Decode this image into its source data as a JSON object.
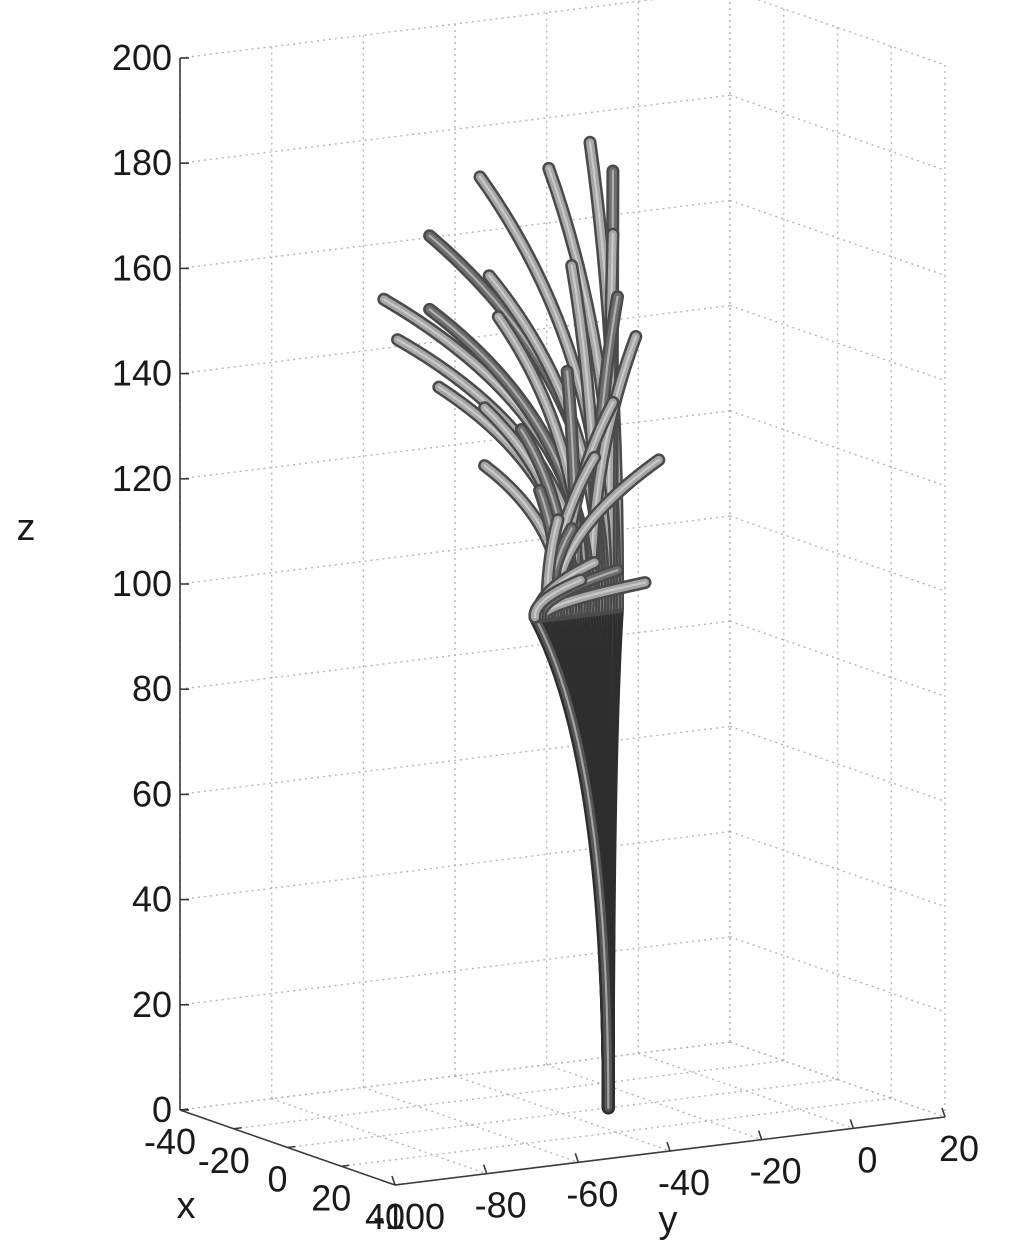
{
  "chart_data": {
    "type": "line",
    "subtype": "3d-tube-trajectories",
    "xlabel": "x",
    "ylabel": "y",
    "zlabel": "z",
    "xlim": [
      -40,
      40
    ],
    "ylim": [
      -100,
      20
    ],
    "zlim": [
      0,
      200
    ],
    "xticks": [
      "-40",
      "-20",
      "0",
      "20",
      "40"
    ],
    "yticks": [
      "-100",
      "-80",
      "-60",
      "-40",
      "-20",
      "0",
      "20"
    ],
    "zticks": [
      "0",
      "20",
      "40",
      "60",
      "80",
      "100",
      "120",
      "140",
      "160",
      "180",
      "200"
    ],
    "grid": true,
    "colors": {
      "trunk": "#555555",
      "branch_light": "#a6a6a6",
      "branch_dark": "#6e6e6e"
    },
    "base_point": {
      "x": 0,
      "y": -30,
      "z": 0
    },
    "junction_z": 95,
    "branch_tips": [
      {
        "y": -34,
        "z": 184
      },
      {
        "y": -43,
        "z": 180
      },
      {
        "y": -29,
        "z": 178
      },
      {
        "y": -29,
        "z": 166
      },
      {
        "y": -58,
        "z": 180
      },
      {
        "y": -69,
        "z": 170
      },
      {
        "y": -56,
        "z": 161
      },
      {
        "y": -38,
        "z": 161
      },
      {
        "y": -28,
        "z": 154
      },
      {
        "y": -24,
        "z": 146
      },
      {
        "y": -79,
        "z": 159
      },
      {
        "y": -69,
        "z": 156
      },
      {
        "y": -54,
        "z": 153
      },
      {
        "y": -76,
        "z": 151
      },
      {
        "y": -39,
        "z": 141
      },
      {
        "y": -67,
        "z": 141
      },
      {
        "y": -57,
        "z": 136
      },
      {
        "y": -49,
        "z": 131
      },
      {
        "y": -29,
        "z": 134
      },
      {
        "y": -57,
        "z": 125
      },
      {
        "y": -45,
        "z": 119
      },
      {
        "y": -19,
        "z": 122
      },
      {
        "y": -33,
        "z": 124
      },
      {
        "y": -38,
        "z": 111
      },
      {
        "y": -41,
        "z": 113
      },
      {
        "y": -22,
        "z": 99
      },
      {
        "y": -28,
        "z": 102
      },
      {
        "y": -33,
        "z": 104
      },
      {
        "y": -36,
        "z": 101
      }
    ]
  }
}
